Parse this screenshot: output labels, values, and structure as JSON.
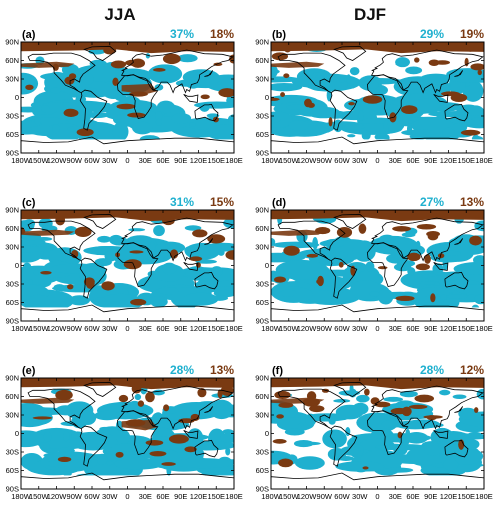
{
  "figure": {
    "columns": [
      "JJA",
      "DJF"
    ],
    "colors": {
      "blue": "#1fb0cf",
      "brown": "#7a3a12",
      "coast": "#000000"
    },
    "panels": [
      {
        "id": "a",
        "label": "(a)",
        "pct_blue": "37%",
        "pct_brown": "18%"
      },
      {
        "id": "b",
        "label": "(b)",
        "pct_blue": "29%",
        "pct_brown": "19%"
      },
      {
        "id": "c",
        "label": "(c)",
        "pct_blue": "31%",
        "pct_brown": "15%"
      },
      {
        "id": "d",
        "label": "(d)",
        "pct_blue": "27%",
        "pct_brown": "13%"
      },
      {
        "id": "e",
        "label": "(e)",
        "pct_blue": "28%",
        "pct_brown": "13%"
      },
      {
        "id": "f",
        "label": "(f)",
        "pct_blue": "28%",
        "pct_brown": "12%"
      }
    ],
    "lat_ticks": [
      "90N",
      "60N",
      "30N",
      "0",
      "30S",
      "60S",
      "90S"
    ],
    "lon_ticks": [
      "180W",
      "150W",
      "120W",
      "90W",
      "60W",
      "30W",
      "0",
      "30E",
      "60E",
      "90E",
      "120E",
      "150E",
      "180E"
    ]
  }
}
